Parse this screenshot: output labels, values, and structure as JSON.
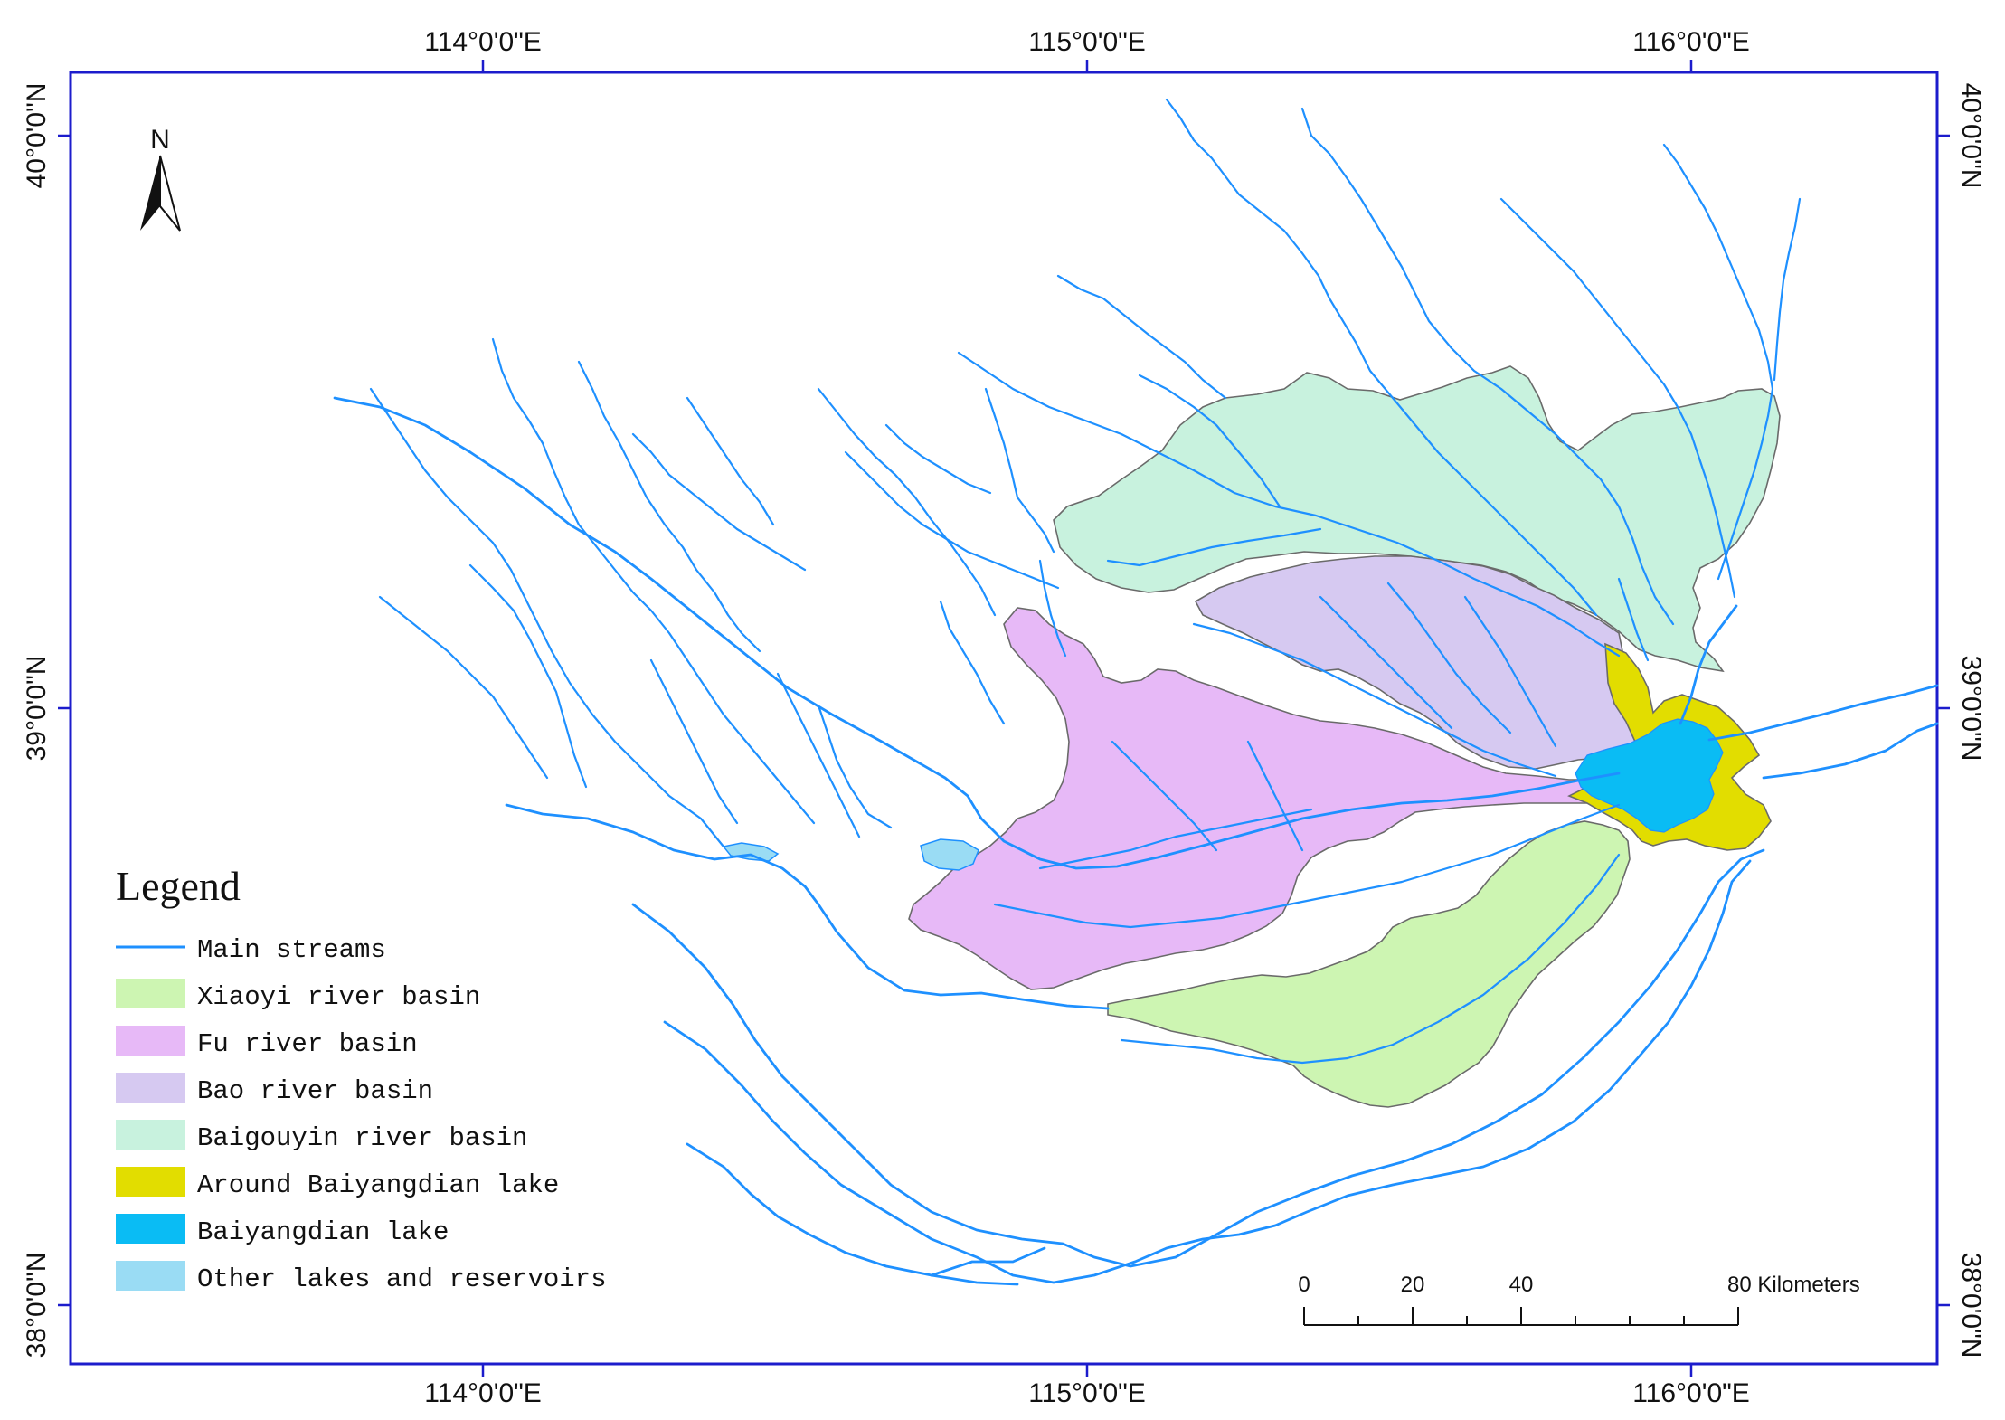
{
  "map": {
    "top_axis": [
      "114°0'0\"E",
      "115°0'0\"E",
      "116°0'0\"E"
    ],
    "bottom_axis": [
      "114°0'0\"E",
      "115°0'0\"E",
      "116°0'0\"E"
    ],
    "left_axis": [
      "40°0'0\"N",
      "39°0'0\"N",
      "38°0'0\"N"
    ],
    "right_axis": [
      "40°0'0\"N",
      "39°0'0\"N",
      "38°0'0\"N"
    ],
    "north_arrow_label": "N",
    "frame_color": "#1c1ccc",
    "stream_color": "#1e90ff",
    "legend": {
      "title": "Legend",
      "items": [
        {
          "label": "Main streams",
          "symbol": "line",
          "color": "#1e90ff"
        },
        {
          "label": "Xiaoyi river basin",
          "symbol": "fill",
          "color": "#cdf5b2"
        },
        {
          "label": "Fu river basin",
          "symbol": "fill",
          "color": "#e7b9f7"
        },
        {
          "label": "Bao river basin",
          "symbol": "fill",
          "color": "#d6c9f1"
        },
        {
          "label": "Baigouyin river basin",
          "symbol": "fill",
          "color": "#c8f2de"
        },
        {
          "label": "Around Baiyangdian lake",
          "symbol": "fill",
          "color": "#e2dd00"
        },
        {
          "label": "Baiyangdian lake",
          "symbol": "fill",
          "color": "#0abcf4"
        },
        {
          "label": "Other lakes and reservoirs",
          "symbol": "fill",
          "color": "#9adcf4"
        }
      ]
    },
    "scale_bar": {
      "labels": [
        "0",
        "20",
        "40",
        "80 Kilometers"
      ]
    }
  }
}
